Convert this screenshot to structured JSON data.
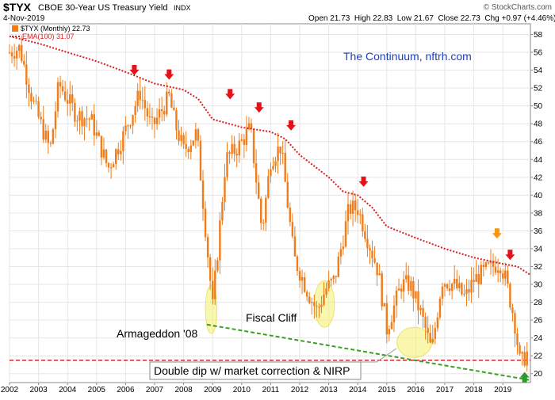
{
  "header": {
    "symbol": "$TYX",
    "name": "CBOE 30-Year US Treasury Yield",
    "exchange": "INDX",
    "date": "4-Nov-2019",
    "watermark": "© StockCharts.com",
    "ohlc": "Open 21.73  High 22.83  Low 21.67  Close 22.73  Chg +0.97 (+4.46%)"
  },
  "legend": {
    "price_label": "$TYX (Monthly) 22.73",
    "ema_label": "EMA(100) 31.07"
  },
  "annotations": {
    "credit": "The Continuum, nftrh.com",
    "armageddon": "Armageddon '08",
    "fiscal_cliff": "Fiscal Cliff",
    "double_dip": "Double dip w/ market correction & NIRP"
  },
  "colors": {
    "candles": "#f07c1a",
    "ema": "#d91e1e",
    "support": "#e0202a",
    "trend": "#3aa021",
    "highlight": "#f5f078",
    "arrow_red": "#e5121a",
    "arrow_orange": "#f59a10",
    "arrow_green": "#2e9a2e",
    "credit_text": "#1a3fc0"
  },
  "chart_data": {
    "type": "candlestick",
    "frequency": "monthly",
    "xlim": [
      2002.0,
      2019.95
    ],
    "ylim": [
      19.0,
      59.2
    ],
    "yticks": [
      20,
      22,
      24,
      26,
      28,
      30,
      32,
      34,
      36,
      38,
      40,
      42,
      44,
      46,
      48,
      50,
      52,
      54,
      56,
      58
    ],
    "xticks": [
      "2002",
      "2003",
      "2004",
      "2005",
      "2006",
      "2007",
      "2008",
      "2009",
      "2010",
      "2011",
      "2012",
      "2013",
      "2014",
      "2015",
      "2016",
      "2017",
      "2018",
      "2019"
    ],
    "price_series": {
      "name": "$TYX (Monthly)",
      "last": 22.73,
      "keypoints_x": [
        2002.0,
        2002.35,
        2002.8,
        2003.4,
        2003.7,
        2004.3,
        2004.8,
        2005.4,
        2005.9,
        2006.5,
        2006.9,
        2007.5,
        2007.7,
        2008.0,
        2008.45,
        2008.9,
        2009.0,
        2009.45,
        2009.9,
        2010.3,
        2010.7,
        2011.0,
        2011.35,
        2011.8,
        2012.3,
        2012.6,
        2012.9,
        2013.2,
        2013.7,
        2014.0,
        2014.3,
        2014.7,
        2015.0,
        2015.5,
        2015.8,
        2016.2,
        2016.55,
        2016.9,
        2017.3,
        2017.7,
        2018.0,
        2018.4,
        2018.9,
        2019.1,
        2019.4,
        2019.6,
        2019.9
      ],
      "keypoints_y": [
        56.0,
        56.5,
        50.5,
        45.0,
        52.5,
        49.0,
        48.5,
        43.0,
        46.5,
        51.5,
        47.5,
        51.0,
        48.0,
        45.0,
        47.0,
        31.0,
        27.5,
        44.0,
        45.5,
        47.5,
        36.0,
        44.0,
        45.5,
        33.0,
        29.0,
        27.0,
        29.5,
        30.5,
        38.5,
        38.5,
        35.5,
        31.5,
        25.0,
        30.0,
        30.0,
        26.5,
        22.5,
        30.5,
        30.0,
        28.5,
        30.5,
        31.5,
        32.5,
        30.5,
        26.0,
        21.0,
        22.7
      ]
    },
    "ema_series": {
      "name": "EMA(100)",
      "last": 31.07,
      "x": [
        2002.0,
        2003.0,
        2004.0,
        2005.0,
        2006.0,
        2007.0,
        2008.0,
        2008.5,
        2009.0,
        2010.0,
        2011.0,
        2011.5,
        2012.0,
        2013.0,
        2013.5,
        2014.0,
        2014.5,
        2015.0,
        2016.0,
        2017.0,
        2018.0,
        2019.0,
        2019.5,
        2019.95
      ],
      "y": [
        57.8,
        57.0,
        56.0,
        55.0,
        53.8,
        52.5,
        51.8,
        50.8,
        48.5,
        47.6,
        47.1,
        46.3,
        44.5,
        42.0,
        40.4,
        40.0,
        38.6,
        36.5,
        35.2,
        34.0,
        33.0,
        32.3,
        32.0,
        31.07
      ]
    },
    "support_level": 21.5,
    "trendline": {
      "x": [
        2008.8,
        2019.9
      ],
      "y": [
        25.5,
        19.3
      ]
    },
    "highlights": [
      {
        "x": 2008.95,
        "y": 27.2,
        "rx": 0.2,
        "ry": 2.7
      },
      {
        "x": 2012.85,
        "y": 27.8,
        "rx": 0.35,
        "ry": 2.6
      },
      {
        "x": 2015.95,
        "y": 23.5,
        "rx": 0.6,
        "ry": 1.7
      }
    ],
    "arrows": [
      {
        "x": 2006.3,
        "y": 53.7,
        "color": "red"
      },
      {
        "x": 2007.5,
        "y": 53.2,
        "color": "red"
      },
      {
        "x": 2009.6,
        "y": 51.0,
        "color": "red"
      },
      {
        "x": 2010.6,
        "y": 49.5,
        "color": "red"
      },
      {
        "x": 2011.7,
        "y": 47.5,
        "color": "red"
      },
      {
        "x": 2014.2,
        "y": 41.2,
        "color": "red"
      },
      {
        "x": 2018.8,
        "y": 35.4,
        "color": "orange"
      },
      {
        "x": 2019.25,
        "y": 33.0,
        "color": "red"
      },
      {
        "x": 2019.75,
        "y": 19.3,
        "color": "green"
      }
    ]
  }
}
